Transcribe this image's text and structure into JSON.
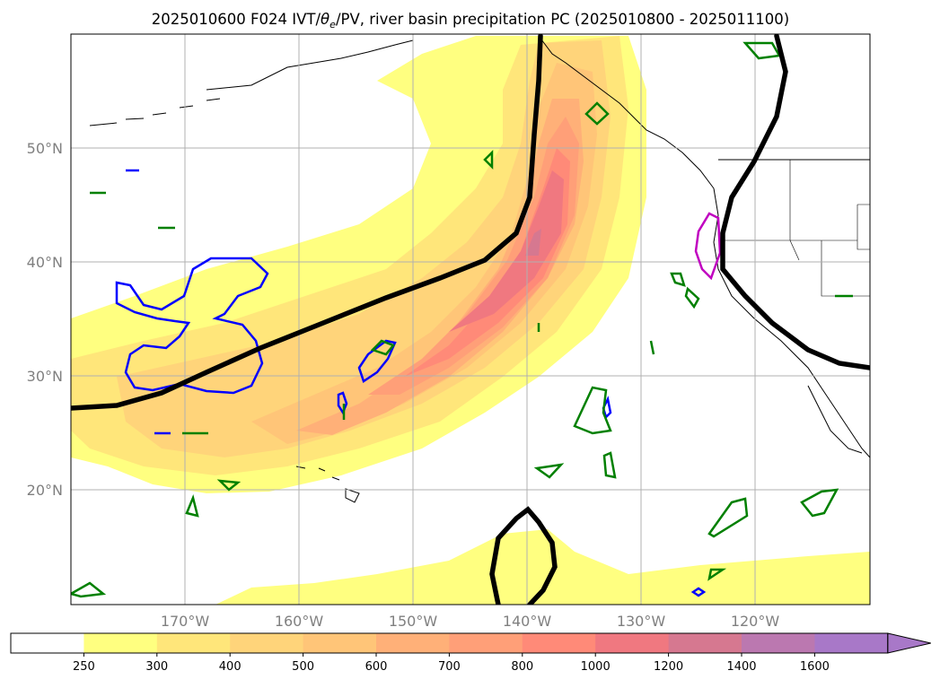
{
  "title": "2025010600 F024 IVT/θe/PV, river basin precipitation PC (2025010800 - 2025011100)",
  "title_parts": {
    "prefix": "2025010600 F024 IVT/",
    "theta": "θ",
    "sub": "e",
    "suffix": "/PV, river basin precipitation PC (2025010800 - 2025011100)"
  },
  "map": {
    "lat_labels": [
      "50°N",
      "40°N",
      "30°N",
      "20°N"
    ],
    "lon_labels": [
      "170°W",
      "160°W",
      "150°W",
      "140°W",
      "130°W",
      "120°W"
    ],
    "grid": true,
    "region": "North Pacific / West coast of North America"
  },
  "colorbar": {
    "levels": [
      "250",
      "300",
      "400",
      "500",
      "600",
      "700",
      "800",
      "1000",
      "1200",
      "1400",
      "1600"
    ],
    "colors": [
      "#ffff80",
      "#ffe67a",
      "#ffd47a",
      "#ffc578",
      "#ffb078",
      "#ff9f78",
      "#ff8a78",
      "#f07880",
      "#d67890",
      "#bb78b0",
      "#a878c8"
    ],
    "extend": "max",
    "below_color": "#ffffff"
  },
  "legend_colors": {
    "theta_e": "#000000",
    "pv_blue": "#0000ff",
    "precip_green": "#008000",
    "magenta": "#c000c0"
  }
}
